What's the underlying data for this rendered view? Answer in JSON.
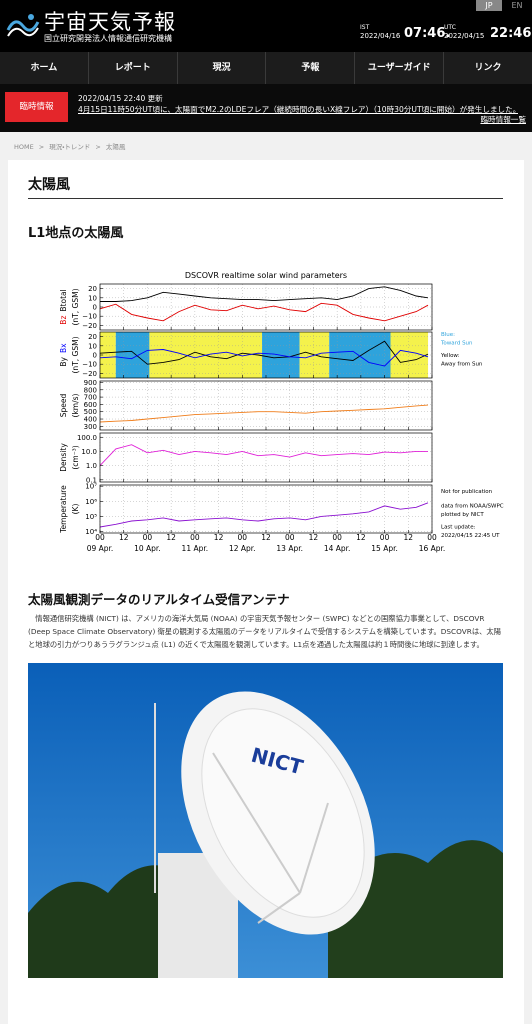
{
  "header": {
    "title": "宇宙天気予報",
    "subtitle": "国立研究開発法人情報通信研究機構",
    "languages": [
      "JP",
      "EN"
    ],
    "clocks": [
      {
        "zone": "IST",
        "date": "2022/04/16",
        "time": "07:46."
      },
      {
        "zone": "UTC",
        "date": "2022/04/15",
        "time": "22:46."
      }
    ]
  },
  "nav": [
    "ホーム",
    "レポート",
    "現況",
    "予報",
    "ユーザーガイド",
    "リンク"
  ],
  "alert": {
    "badge": "臨時情報",
    "updated": "2022/04/15 22:40 更新",
    "message": "4月15日11時50分UT頃に、太陽面でM2.2のLDEフレア（継続時間の長いX線フレア）（10時30分UT頃に開始）が発生しました。",
    "link": "臨時情報一覧"
  },
  "breadcrumb": {
    "separator": ">",
    "items": [
      "HOME",
      "現況・トレンド",
      "太陽風"
    ]
  },
  "page_title": "太陽風",
  "section1": {
    "heading": "L1地点の太陽風"
  },
  "chart_data": [
    {
      "type": "line",
      "title": "DSCOVR realtime solar wind parameters",
      "ylabel": "(nT, GSM)",
      "x": [
        0,
        8,
        16,
        24,
        32,
        40,
        48,
        56,
        64,
        72,
        80,
        88,
        96,
        104,
        112,
        120,
        128,
        136,
        144,
        152,
        160,
        166
      ],
      "xlim": [
        0,
        168
      ],
      "xticks": [
        0,
        12,
        24,
        36,
        48,
        60,
        72,
        84,
        96,
        108,
        120,
        132,
        144,
        156,
        168
      ],
      "ylim": [
        -25,
        25
      ],
      "yticks": [
        20,
        10,
        0,
        {
          "value": -10,
          "label": "−10"
        },
        {
          "value": -20,
          "label": "−20"
        }
      ],
      "grid": true,
      "series": [
        {
          "name": "Bz",
          "color": "#e00000",
          "values": [
            -2,
            3,
            -8,
            -12,
            -15,
            -5,
            2,
            -3,
            -4,
            2,
            -2,
            1,
            -3,
            -5,
            4,
            2,
            -8,
            -12,
            -15,
            -10,
            -5,
            2
          ]
        },
        {
          "name": "Btotal",
          "color": "#000000",
          "values": [
            6,
            6,
            7,
            10,
            16,
            14,
            12,
            10,
            9,
            8,
            8,
            7,
            8,
            9,
            10,
            8,
            12,
            20,
            22,
            18,
            12,
            10
          ]
        }
      ]
    },
    {
      "type": "line",
      "ylabel": "(nT, GSM)",
      "x": [
        0,
        8,
        16,
        24,
        32,
        40,
        48,
        56,
        64,
        72,
        80,
        88,
        96,
        104,
        112,
        120,
        128,
        136,
        144,
        152,
        160,
        166
      ],
      "xlim": [
        0,
        168
      ],
      "xticks": [
        0,
        12,
        24,
        36,
        48,
        60,
        72,
        84,
        96,
        108,
        120,
        132,
        144,
        156,
        168
      ],
      "ylim": [
        -25,
        25
      ],
      "yticks": [
        20,
        10,
        0,
        {
          "value": -10,
          "label": "−10"
        },
        {
          "value": -20,
          "label": "−20"
        }
      ],
      "grid": true,
      "sectors": [
        {
          "start": 0,
          "end": 8,
          "color": "#f4f24c"
        },
        {
          "start": 8,
          "end": 25,
          "color": "#2ea3dc"
        },
        {
          "start": 25,
          "end": 82,
          "color": "#f4f24c"
        },
        {
          "start": 82,
          "end": 101,
          "color": "#2ea3dc"
        },
        {
          "start": 101,
          "end": 116,
          "color": "#f4f24c"
        },
        {
          "start": 116,
          "end": 147,
          "color": "#2ea3dc"
        },
        {
          "start": 147,
          "end": 166,
          "color": "#f4f24c"
        }
      ],
      "annotations": [
        {
          "text": "Blue:",
          "color": "#2ea3dc"
        },
        {
          "text": "Toward Sun",
          "color": "#2ea3dc"
        },
        {
          "text": "Yellow:",
          "color": "#000000"
        },
        {
          "text": "Away from Sun",
          "color": "#000000"
        }
      ],
      "series": [
        {
          "name": "By",
          "color": "#000000",
          "values": [
            2,
            3,
            4,
            -10,
            -8,
            -5,
            3,
            -2,
            -4,
            2,
            0,
            -3,
            -2,
            3,
            -2,
            -4,
            -6,
            5,
            15,
            -8,
            -5,
            1
          ]
        },
        {
          "name": "Bx",
          "color": "#0000ff",
          "values": [
            -3,
            -2,
            -4,
            5,
            6,
            2,
            -3,
            1,
            3,
            -1,
            2,
            1,
            -2,
            -3,
            2,
            3,
            4,
            -8,
            -12,
            5,
            2,
            -2
          ]
        }
      ]
    },
    {
      "type": "line",
      "ylabel": "Speed",
      "yunit": "(km/s)",
      "x": [
        0,
        8,
        16,
        24,
        32,
        40,
        48,
        56,
        64,
        72,
        80,
        88,
        96,
        104,
        112,
        120,
        128,
        136,
        144,
        152,
        160,
        166
      ],
      "xlim": [
        0,
        168
      ],
      "xticks": [
        0,
        12,
        24,
        36,
        48,
        60,
        72,
        84,
        96,
        108,
        120,
        132,
        144,
        156,
        168
      ],
      "ylim": [
        250,
        920
      ],
      "yticks": [
        900,
        800,
        700,
        600,
        500,
        400,
        300
      ],
      "grid": true,
      "series": [
        {
          "color": "#f07d1a",
          "values": [
            360,
            370,
            380,
            400,
            420,
            440,
            460,
            470,
            480,
            490,
            500,
            500,
            490,
            480,
            500,
            510,
            520,
            530,
            540,
            560,
            580,
            590
          ]
        }
      ]
    },
    {
      "type": "line",
      "ylabel": "Density",
      "yunit": "(cm⁻³)",
      "log": true,
      "x": [
        0,
        8,
        16,
        24,
        32,
        40,
        48,
        56,
        64,
        72,
        80,
        88,
        96,
        104,
        112,
        120,
        128,
        136,
        144,
        152,
        160,
        166
      ],
      "xlim": [
        0,
        168
      ],
      "xticks": [
        0,
        12,
        24,
        36,
        48,
        60,
        72,
        84,
        96,
        108,
        120,
        132,
        144,
        156,
        168
      ],
      "ylim": [
        0.07,
        200
      ],
      "yticks": [
        {
          "value": 100,
          "label": "100.0"
        },
        {
          "value": 10,
          "label": "10.0"
        },
        {
          "value": 1,
          "label": "1.0"
        },
        0.1
      ],
      "grid": true,
      "series": [
        {
          "color": "#e020d8",
          "values": [
            1,
            15,
            30,
            8,
            12,
            6,
            10,
            8,
            6,
            10,
            5,
            6,
            4,
            8,
            5,
            6,
            7,
            6,
            9,
            8,
            10,
            10
          ]
        }
      ]
    },
    {
      "type": "line",
      "ylabel": "Temperature",
      "yunit": "(K)",
      "log": true,
      "x": [
        0,
        8,
        16,
        24,
        32,
        40,
        48,
        56,
        64,
        72,
        80,
        88,
        96,
        104,
        112,
        120,
        128,
        136,
        144,
        152,
        160,
        166
      ],
      "xlim": [
        0,
        168
      ],
      "xticks": [
        {
          "value": 0,
          "label": "00"
        },
        {
          "value": 12,
          "label": "12"
        },
        {
          "value": 24,
          "label": "00"
        },
        {
          "value": 36,
          "label": "12"
        },
        {
          "value": 48,
          "label": "00"
        },
        {
          "value": 60,
          "label": "12"
        },
        {
          "value": 72,
          "label": "00"
        },
        {
          "value": 84,
          "label": "12"
        },
        {
          "value": 96,
          "label": "00"
        },
        {
          "value": 108,
          "label": "12"
        },
        {
          "value": 120,
          "label": "00"
        },
        {
          "value": 132,
          "label": "12"
        },
        {
          "value": 144,
          "label": "00"
        },
        {
          "value": 156,
          "label": "12"
        },
        {
          "value": 168,
          "label": "00"
        }
      ],
      "xdates": [
        {
          "value": 0,
          "label": "09 Apr."
        },
        {
          "value": 24,
          "label": "10 Apr."
        },
        {
          "value": 48,
          "label": "11 Apr."
        },
        {
          "value": 72,
          "label": "12 Apr."
        },
        {
          "value": 96,
          "label": "13 Apr."
        },
        {
          "value": 120,
          "label": "14 Apr."
        },
        {
          "value": 144,
          "label": "15 Apr."
        },
        {
          "value": 168,
          "label": "16 Apr."
        }
      ],
      "ylim": [
        8000,
        12000000
      ],
      "yticks": [
        {
          "value": 10000000,
          "label": "10⁷"
        },
        {
          "value": 1000000,
          "label": "10⁶"
        },
        {
          "value": 100000,
          "label": "10⁵"
        },
        {
          "value": 10000,
          "label": "10⁴"
        }
      ],
      "grid": true,
      "annotations": [
        {
          "text": "Not for publication",
          "color": "#000000"
        },
        {
          "text": "data from NOAA/SWPC",
          "color": "#000000"
        },
        {
          "text": "plotted by NICT",
          "color": "#000000"
        },
        {
          "text": "Last update:",
          "color": "#000000"
        },
        {
          "text": "2022/04/15 22:45 UT",
          "color": "#000000"
        }
      ],
      "series": [
        {
          "color": "#8a10d0",
          "values": [
            20000,
            30000,
            50000,
            60000,
            80000,
            50000,
            60000,
            70000,
            80000,
            60000,
            50000,
            70000,
            80000,
            60000,
            100000,
            120000,
            150000,
            200000,
            500000,
            300000,
            400000,
            800000
          ]
        }
      ]
    }
  ],
  "section2": {
    "heading": "太陽風観測データのリアルタイム受信アンテナ",
    "paragraph": "　情報通信研究機構 (NICT) は、アメリカの海洋大気局 (NOAA) の宇宙天気予報センター (SWPC) などとの国際協力事業として、DSCOVR (Deep Space Climate Observatory) 衛星の観測する太陽風のデータをリアルタイムで受信するシステムを構築しています。DSCOVRは、太陽と地球の引力がつりあうラグランジュ点 (L1) の近くで太陽風を観測しています。L1点を通過した太陽風は約１時間後に地球に到達します。",
    "photo_logo": "NICT"
  }
}
